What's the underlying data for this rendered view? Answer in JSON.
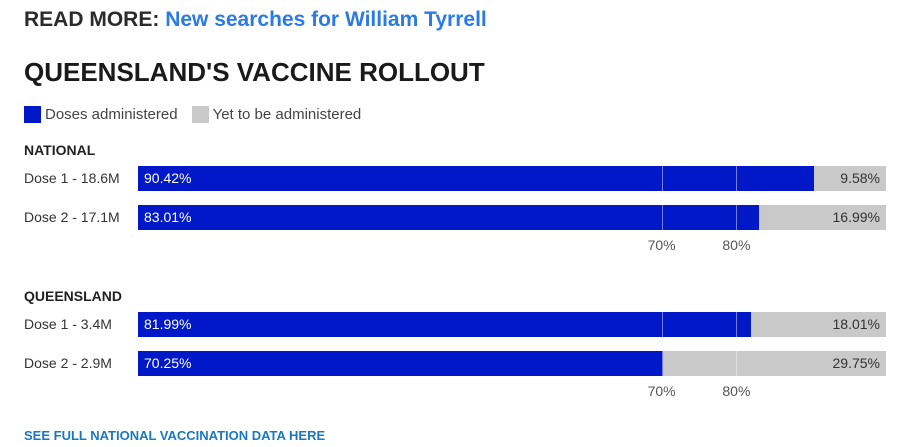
{
  "read_more": {
    "label": "READ MORE:",
    "link_text": "New searches for William Tyrrell"
  },
  "title": "QUEENSLAND'S VACCINE ROLLOUT",
  "legend": [
    {
      "label": "Doses administered",
      "color": "#0018c8"
    },
    {
      "label": "Yet to be administered",
      "color": "#c9c9c9"
    }
  ],
  "footer_link": "SEE FULL NATIONAL VACCINATION DATA HERE",
  "chart_data": {
    "type": "bar",
    "orientation": "horizontal",
    "stacked": true,
    "xlim": [
      0,
      100
    ],
    "reference_ticks": [
      {
        "value": 70,
        "label": "70%"
      },
      {
        "value": 80,
        "label": "80%"
      }
    ],
    "series": [
      {
        "name": "Doses administered",
        "color": "#0018c8"
      },
      {
        "name": "Yet to be administered",
        "color": "#c9c9c9"
      }
    ],
    "groups": [
      {
        "name": "NATIONAL",
        "rows": [
          {
            "label": "Dose 1 - 18.6M",
            "administered": 90.42,
            "administered_label": "90.42%",
            "remaining": 9.58,
            "remaining_label": "9.58%"
          },
          {
            "label": "Dose 2 - 17.1M",
            "administered": 83.01,
            "administered_label": "83.01%",
            "remaining": 16.99,
            "remaining_label": "16.99%"
          }
        ]
      },
      {
        "name": "QUEENSLAND",
        "rows": [
          {
            "label": "Dose 1 - 3.4M",
            "administered": 81.99,
            "administered_label": "81.99%",
            "remaining": 18.01,
            "remaining_label": "18.01%"
          },
          {
            "label": "Dose 2 - 2.9M",
            "administered": 70.25,
            "administered_label": "70.25%",
            "remaining": 29.75,
            "remaining_label": "29.75%"
          }
        ]
      }
    ]
  }
}
